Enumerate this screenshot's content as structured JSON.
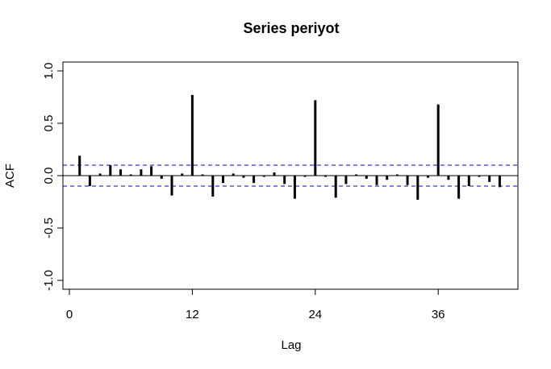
{
  "chart_data": {
    "type": "bar",
    "title": "Series  periyot",
    "xlabel": "Lag",
    "ylabel": "ACF",
    "xlim": [
      0,
      43
    ],
    "ylim": [
      -1.0,
      1.0
    ],
    "x_ticks": [
      0,
      12,
      24,
      36
    ],
    "y_ticks": [
      -1.0,
      -0.5,
      0.0,
      0.5,
      1.0
    ],
    "y_tick_labels": [
      "-1.0",
      "-0.5",
      "0.0",
      "0.5",
      "1.0"
    ],
    "confidence_bound": 0.1,
    "lags": [
      1,
      2,
      3,
      4,
      5,
      6,
      7,
      8,
      9,
      10,
      11,
      12,
      13,
      14,
      15,
      16,
      17,
      18,
      19,
      20,
      21,
      22,
      23,
      24,
      25,
      26,
      27,
      28,
      29,
      30,
      31,
      32,
      33,
      34,
      35,
      36,
      37,
      38,
      39,
      40,
      41,
      42
    ],
    "values": [
      0.19,
      -0.1,
      0.02,
      0.1,
      0.06,
      0.0,
      0.06,
      0.09,
      -0.03,
      -0.19,
      0.02,
      0.77,
      0.01,
      -0.2,
      -0.07,
      0.02,
      -0.02,
      -0.07,
      -0.01,
      0.03,
      -0.08,
      -0.22,
      -0.01,
      0.72,
      -0.01,
      -0.21,
      -0.08,
      0.01,
      -0.03,
      -0.09,
      -0.04,
      0.0,
      -0.09,
      -0.23,
      -0.02,
      0.68,
      -0.04,
      -0.22,
      -0.1,
      -0.01,
      -0.06,
      -0.11
    ],
    "colors": {
      "bars": "#000000",
      "confidence": "#0000cc",
      "frame": "#000000"
    }
  }
}
